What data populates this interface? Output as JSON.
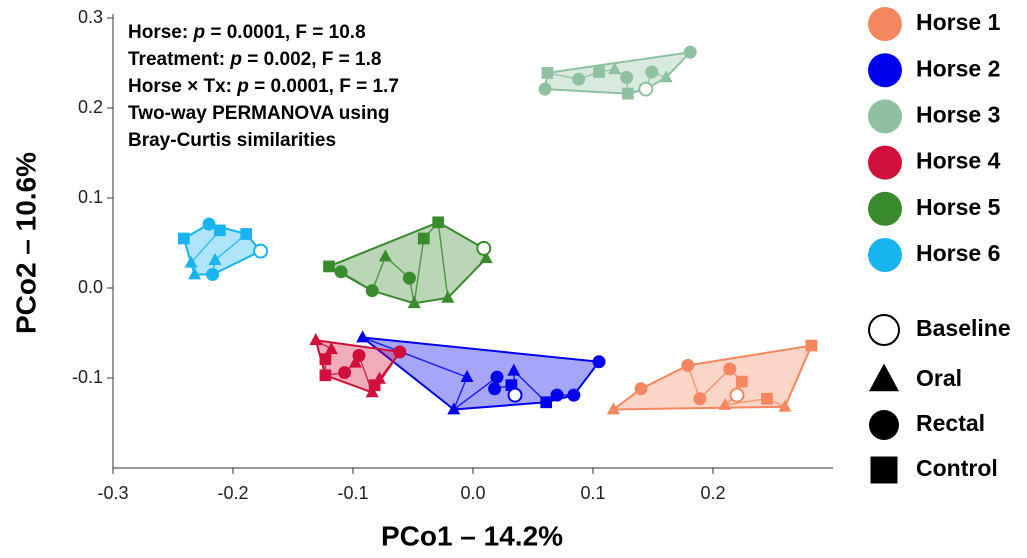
{
  "chart_data": {
    "type": "scatter",
    "xlabel": "PCo1 – 14.2%",
    "ylabel": "PCo2 – 10.6%",
    "xlim": [
      -0.3,
      0.3
    ],
    "ylim": [
      -0.2,
      0.3
    ],
    "xticks": [
      -0.3,
      -0.2,
      -0.1,
      {
        "value": 0,
        "label": "0.0"
      },
      0.1,
      0.2
    ],
    "yticks": [
      -0.1,
      {
        "value": 0,
        "label": "0.0"
      },
      0.1,
      0.2,
      0.3
    ],
    "annotations": [
      [
        "Horse: ",
        "p",
        " = 0.0001, F = 10.8"
      ],
      [
        "Treatment: ",
        "p",
        " = 0.002, F = 1.8"
      ],
      [
        "Horse × Tx: ",
        "p",
        " = 0.0001, F = 1.7"
      ],
      [
        "Two-way PERMANOVA using"
      ],
      [
        "Bray-Curtis similarities"
      ]
    ],
    "treatments": [
      "Baseline",
      "Oral",
      "Rectal",
      "Control"
    ],
    "series": [
      {
        "name": "Horse 1",
        "color": "#f4875f",
        "x": [
          0.117,
          0.14,
          0.179,
          0.189,
          0.214,
          0.224,
          0.22,
          0.21,
          0.245,
          0.26,
          0.282
        ],
        "values": [
          -0.135,
          -0.112,
          -0.086,
          -0.123,
          -0.09,
          -0.104,
          -0.119,
          -0.13,
          -0.123,
          -0.132,
          -0.064
        ],
        "treatment": [
          "Oral",
          "Rectal",
          "Rectal",
          "Rectal",
          "Rectal",
          "Control",
          "Baseline",
          "Oral",
          "Control",
          "Oral",
          "Control"
        ]
      },
      {
        "name": "Horse 2",
        "color": "#0000ee",
        "x": [
          -0.092,
          -0.005,
          -0.016,
          0.02,
          0.018,
          0.032,
          0.035,
          0.034,
          0.061,
          0.07,
          0.084,
          0.105
        ],
        "values": [
          -0.055,
          -0.099,
          -0.135,
          -0.099,
          -0.112,
          -0.108,
          -0.119,
          -0.092,
          -0.127,
          -0.119,
          -0.119,
          -0.082
        ],
        "treatment": [
          "Oral",
          "Oral",
          "Oral",
          "Rectal",
          "Rectal",
          "Control",
          "Baseline",
          "Oral",
          "Control",
          "Rectal",
          "Rectal",
          "Rectal"
        ]
      },
      {
        "name": "Horse 3",
        "color": "#8fc0a0",
        "x": [
          0.06,
          0.062,
          0.088,
          0.105,
          0.118,
          0.128,
          0.129,
          0.144,
          0.149,
          0.161,
          0.181
        ],
        "values": [
          0.221,
          0.239,
          0.232,
          0.24,
          0.243,
          0.234,
          0.216,
          0.221,
          0.24,
          0.234,
          0.262
        ],
        "treatment": [
          "Rectal",
          "Control",
          "Rectal",
          "Control",
          "Oral",
          "Rectal",
          "Control",
          "Baseline",
          "Rectal",
          "Oral",
          "Rectal"
        ]
      },
      {
        "name": "Horse 4",
        "color": "#d0103a",
        "x": [
          -0.131,
          -0.118,
          -0.123,
          -0.123,
          -0.107,
          -0.098,
          -0.095,
          -0.084,
          -0.082,
          -0.078,
          -0.061
        ],
        "values": [
          -0.058,
          -0.068,
          -0.079,
          -0.097,
          -0.094,
          -0.083,
          -0.075,
          -0.116,
          -0.108,
          -0.101,
          -0.071
        ],
        "treatment": [
          "Oral",
          "Oral",
          "Control",
          "Control",
          "Rectal",
          "Oral",
          "Rectal",
          "Oral",
          "Control",
          "Oral",
          "Rectal"
        ]
      },
      {
        "name": "Horse 5",
        "color": "#3a8a2e",
        "x": [
          -0.12,
          -0.11,
          -0.084,
          -0.073,
          -0.053,
          -0.049,
          -0.041,
          -0.029,
          -0.021,
          0.011,
          0.009
        ],
        "values": [
          0.024,
          0.018,
          -0.003,
          0.035,
          0.011,
          -0.017,
          0.055,
          0.073,
          -0.011,
          0.033,
          0.044
        ],
        "treatment": [
          "Control",
          "Rectal",
          "Rectal",
          "Oral",
          "Rectal",
          "Oral",
          "Control",
          "Control",
          "Oral",
          "Oral",
          "Baseline"
        ]
      },
      {
        "name": "Horse 6",
        "color": "#18b4f0",
        "x": [
          -0.241,
          -0.22,
          -0.211,
          -0.235,
          -0.232,
          -0.217,
          -0.215,
          -0.189,
          -0.177
        ],
        "values": [
          0.055,
          0.071,
          0.064,
          0.028,
          0.015,
          0.015,
          0.031,
          0.06,
          0.041
        ],
        "treatment": [
          "Control",
          "Rectal",
          "Control",
          "Oral",
          "Oral",
          "Rectal",
          "Oral",
          "Control",
          "Baseline"
        ]
      }
    ]
  }
}
